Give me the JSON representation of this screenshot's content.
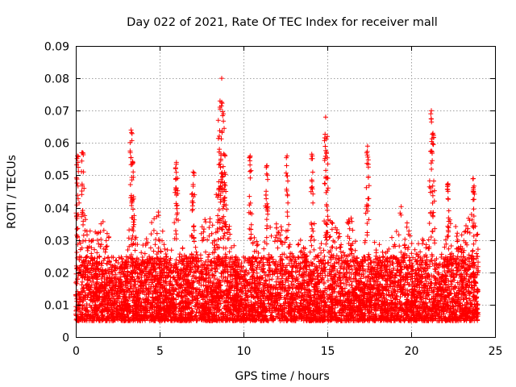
{
  "chart_data": {
    "type": "scatter",
    "title": "Day 022 of 2021, Rate Of TEC Index for receiver mall",
    "xlabel": "GPS time / hours",
    "ylabel": "ROTI / TECUs",
    "xlim": [
      0,
      25
    ],
    "ylim": [
      0,
      0.09
    ],
    "x_ticks": [
      0,
      5,
      10,
      15,
      20,
      25
    ],
    "x_tick_labels": [
      "0",
      "5",
      "10",
      "15",
      "20",
      "25"
    ],
    "y_ticks": [
      0,
      0.01,
      0.02,
      0.03,
      0.04,
      0.05,
      0.06,
      0.07,
      0.08,
      0.09
    ],
    "y_tick_labels": [
      "0",
      "0.01",
      "0.02",
      "0.03",
      "0.04",
      "0.05",
      "0.06",
      "0.07",
      "0.08",
      "0.09"
    ],
    "grid": true,
    "marker": "+",
    "color": "#ff0000",
    "x_range": [
      0,
      24
    ],
    "baseline_y_range": [
      0.005,
      0.03
    ],
    "peaks": [
      {
        "x": 0.1,
        "y": 0.056
      },
      {
        "x": 0.4,
        "y": 0.057
      },
      {
        "x": 3.3,
        "y": 0.064
      },
      {
        "x": 3.4,
        "y": 0.054
      },
      {
        "x": 6.0,
        "y": 0.054
      },
      {
        "x": 7.0,
        "y": 0.051
      },
      {
        "x": 8.5,
        "y": 0.067
      },
      {
        "x": 8.6,
        "y": 0.073
      },
      {
        "x": 8.7,
        "y": 0.08
      },
      {
        "x": 8.8,
        "y": 0.069
      },
      {
        "x": 8.9,
        "y": 0.056
      },
      {
        "x": 10.4,
        "y": 0.056
      },
      {
        "x": 11.4,
        "y": 0.053
      },
      {
        "x": 12.6,
        "y": 0.056
      },
      {
        "x": 14.1,
        "y": 0.056
      },
      {
        "x": 14.9,
        "y": 0.068
      },
      {
        "x": 15.0,
        "y": 0.062
      },
      {
        "x": 17.4,
        "y": 0.059
      },
      {
        "x": 21.2,
        "y": 0.07
      },
      {
        "x": 21.3,
        "y": 0.063
      },
      {
        "x": 22.2,
        "y": 0.047
      },
      {
        "x": 23.7,
        "y": 0.049
      }
    ]
  }
}
